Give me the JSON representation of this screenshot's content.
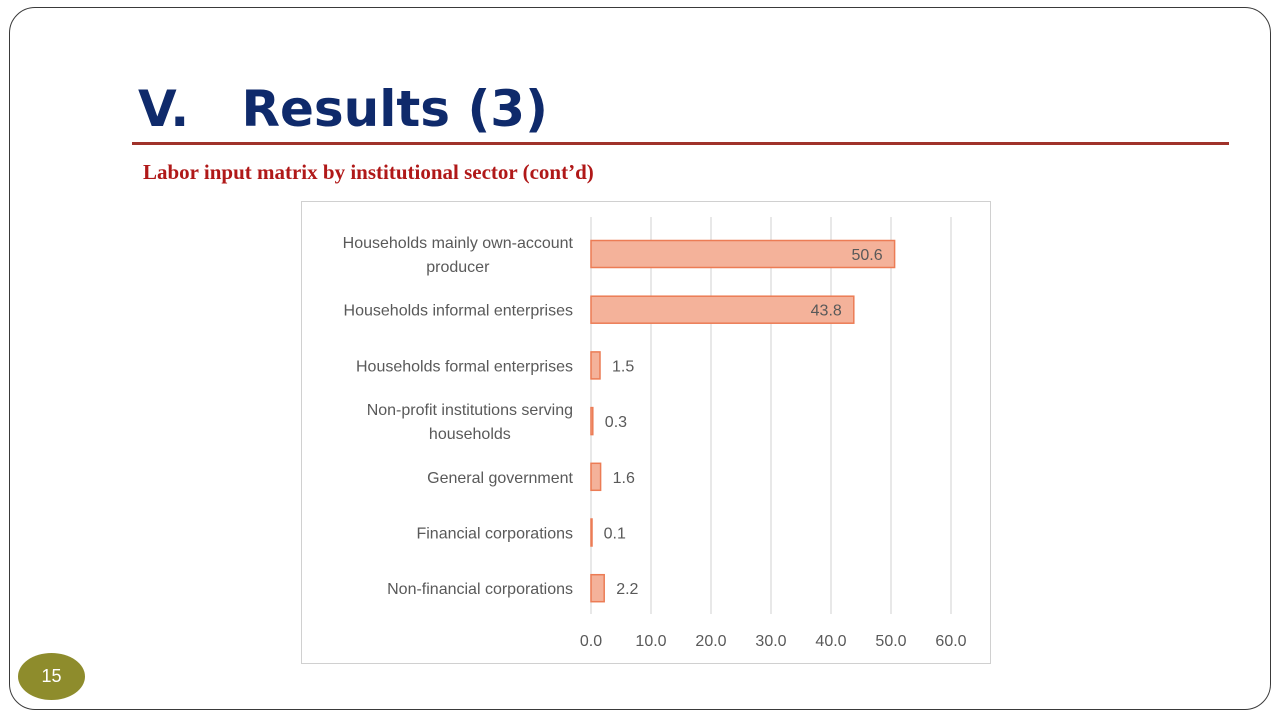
{
  "slide": {
    "title": "V.   Results (3)",
    "subtitle": "Labor input matrix by institutional sector (cont’d)",
    "page_number": "15"
  },
  "colors": {
    "title": "#0f2a6b",
    "title_rule": "#a0322a",
    "subtitle": "#b01818",
    "bar_fill": "#f4b29a",
    "bar_stroke": "#ec7c55",
    "gridline": "#d9d9d9",
    "label_text": "#595959",
    "page_badge": "#8e8c2c"
  },
  "chart_data": {
    "type": "bar",
    "orientation": "horizontal",
    "title": "",
    "xlabel": "",
    "ylabel": "",
    "categories": [
      [
        "Households mainly own-account",
        "producer"
      ],
      [
        "Households informal enterprises"
      ],
      [
        "Households formal enterprises"
      ],
      [
        "Non-profit institutions serving",
        "households"
      ],
      [
        "General government"
      ],
      [
        "Financial corporations"
      ],
      [
        "Non-financial corporations"
      ]
    ],
    "values": [
      50.6,
      43.8,
      1.5,
      0.3,
      1.6,
      0.1,
      2.2
    ],
    "data_labels": [
      "50.6",
      "43.8",
      "1.5",
      "0.3",
      "1.6",
      "0.1",
      "2.2"
    ],
    "xlim": [
      0,
      60
    ],
    "x_ticks": [
      0,
      10,
      20,
      30,
      40,
      50,
      60
    ],
    "x_tick_labels": [
      "0.0",
      "10.0",
      "20.0",
      "30.0",
      "40.0",
      "50.0",
      "60.0"
    ],
    "grid": true,
    "legend": "none"
  }
}
